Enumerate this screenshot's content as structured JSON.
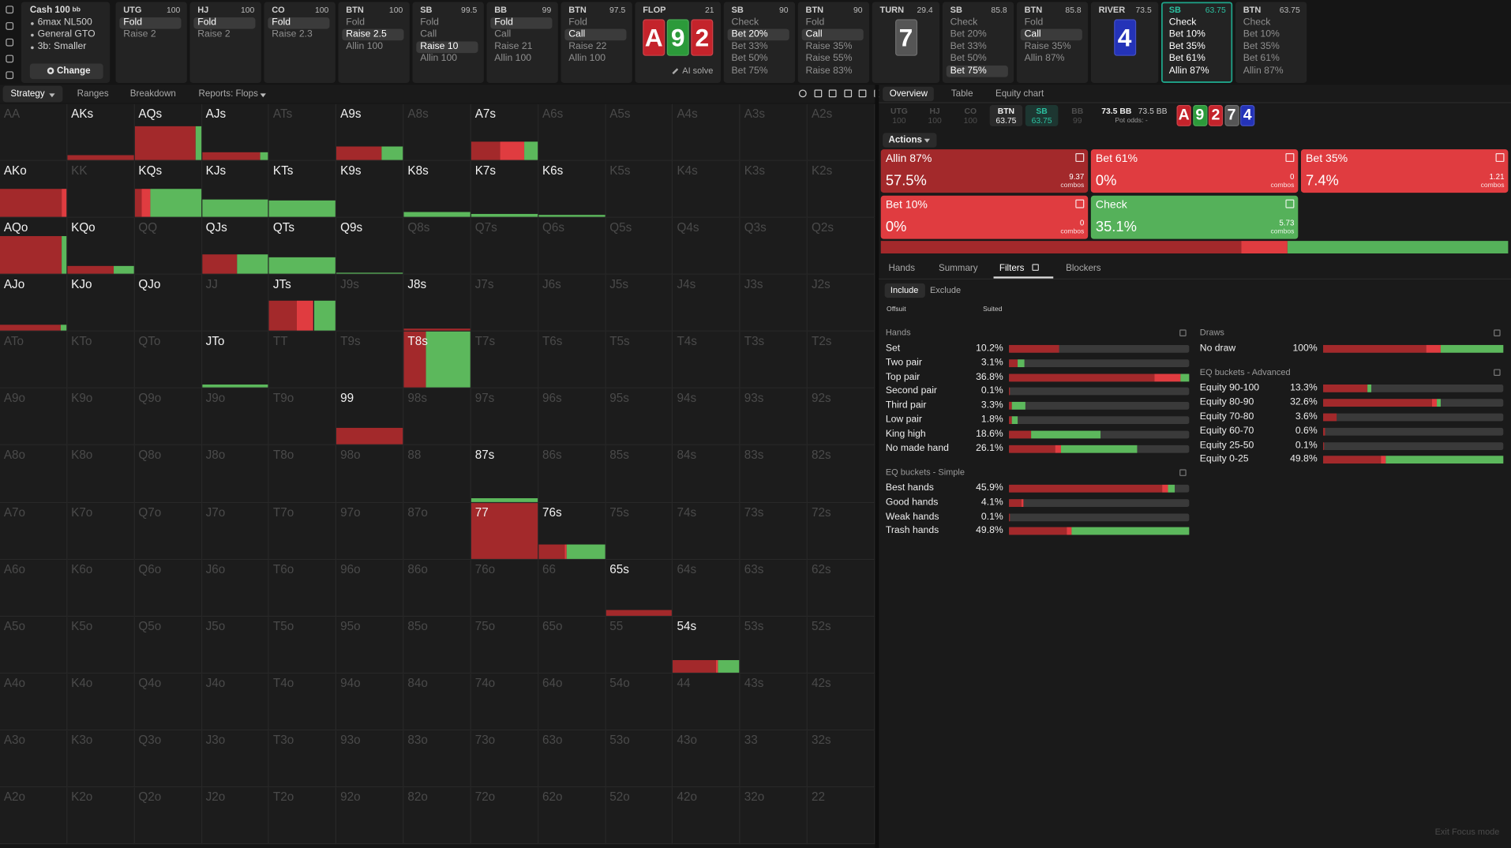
{
  "sidebar": {
    "title": "Cash 100",
    "title_unit": "bb",
    "items": [
      "6max NL500",
      "General GTO",
      "3b: Smaller"
    ],
    "button": "Change"
  },
  "action_strip": [
    {
      "position": "UTG",
      "stack": "100",
      "options": [
        "Fold",
        "Raise 2"
      ],
      "selected": 0
    },
    {
      "position": "HJ",
      "stack": "100",
      "options": [
        "Fold",
        "Raise 2"
      ],
      "selected": 0
    },
    {
      "position": "CO",
      "stack": "100",
      "options": [
        "Fold",
        "Raise 2.3"
      ],
      "selected": 0
    },
    {
      "position": "BTN",
      "stack": "100",
      "options": [
        "Fold",
        "Raise 2.5",
        "Allin 100"
      ],
      "selected": 1
    },
    {
      "position": "SB",
      "stack": "99.5",
      "options": [
        "Fold",
        "Call",
        "Raise 10",
        "Allin 100"
      ],
      "selected": 2
    },
    {
      "position": "BB",
      "stack": "99",
      "options": [
        "Fold",
        "Call",
        "Raise 21",
        "Allin 100"
      ],
      "selected": 0
    },
    {
      "position": "BTN",
      "stack": "97.5",
      "options": [
        "Fold",
        "Call",
        "Raise 22",
        "Allin 100"
      ],
      "selected": 1
    },
    {
      "street": "FLOP",
      "pot": "21",
      "cards": [
        {
          "rank": "A",
          "color": "#c4232b"
        },
        {
          "rank": "9",
          "color": "#2c9a3a"
        },
        {
          "rank": "2",
          "color": "#c4232b"
        }
      ],
      "action": "AI solve"
    },
    {
      "position": "SB",
      "stack": "90",
      "options": [
        "Check",
        "Bet 20%",
        "Bet 33%",
        "Bet 50%",
        "Bet 75%"
      ],
      "selected": 1
    },
    {
      "position": "BTN",
      "stack": "90",
      "options": [
        "Fold",
        "Call",
        "Raise 35%",
        "Raise 55%",
        "Raise 83%"
      ],
      "selected": 1
    },
    {
      "street": "TURN",
      "pot": "29.4",
      "cards": [
        {
          "rank": "7",
          "color": "#555555"
        }
      ]
    },
    {
      "position": "SB",
      "stack": "85.8",
      "options": [
        "Check",
        "Bet 20%",
        "Bet 33%",
        "Bet 50%",
        "Bet 75%"
      ],
      "selected": 4
    },
    {
      "position": "BTN",
      "stack": "85.8",
      "options": [
        "Fold",
        "Call",
        "Raise 35%",
        "Allin 87%"
      ],
      "selected": 1
    },
    {
      "street": "RIVER",
      "pot": "73.5",
      "cards": [
        {
          "rank": "4",
          "color": "#2433b8"
        }
      ]
    },
    {
      "position": "SB",
      "stack": "63.75",
      "options": [
        "Check",
        "Bet 10%",
        "Bet 35%",
        "Bet 61%",
        "Allin 87%"
      ],
      "active": true
    },
    {
      "position": "BTN",
      "stack": "63.75",
      "options": [
        "Check",
        "Bet 10%",
        "Bet 35%",
        "Bet 61%",
        "Allin 87%"
      ]
    }
  ],
  "toolbar": {
    "tabs": [
      "Strategy",
      "Ranges",
      "Breakdown",
      "Reports: Flops"
    ],
    "active": 0
  },
  "mix_colors": [
    "#a3292b",
    "#e03c40",
    "#5cb85c"
  ],
  "grid": {
    "rows": [
      [
        "AA",
        {
          "label": "AKs",
          "bright": true,
          "weight": 0.08,
          "mix": [
            1,
            0,
            0
          ]
        },
        {
          "label": "AQs",
          "bright": true,
          "weight": 0.6,
          "mix": [
            0.92,
            0,
            0.08
          ]
        },
        {
          "label": "AJs",
          "bright": true,
          "weight": 0.14,
          "mix": [
            0.88,
            0,
            0.12
          ]
        },
        "ATs",
        {
          "label": "A9s",
          "bright": true,
          "weight": 0.24,
          "mix": [
            0.68,
            0,
            0.32
          ]
        },
        "A8s",
        {
          "label": "A7s",
          "bright": true,
          "weight": 0.32,
          "mix": [
            0.43,
            0.37,
            0.2
          ]
        },
        "A6s",
        "A5s",
        "A4s",
        "A3s",
        "A2s"
      ],
      [
        {
          "label": "AKo",
          "bright": true,
          "weight": 0.5,
          "mix": [
            0.93,
            0.07,
            0
          ]
        },
        "KK",
        {
          "label": "KQs",
          "bright": true,
          "weight": 0.5,
          "mix": [
            0.1,
            0.13,
            0.77
          ]
        },
        {
          "label": "KJs",
          "bright": true,
          "weight": 0.32,
          "mix": [
            0,
            0,
            1
          ]
        },
        {
          "label": "KTs",
          "bright": true,
          "weight": 0.3,
          "mix": [
            0,
            0,
            1
          ]
        },
        {
          "label": "K9s",
          "bright": true
        },
        {
          "label": "K8s",
          "bright": true,
          "weight": 0.08,
          "mix": [
            0,
            0,
            1
          ]
        },
        {
          "label": "K7s",
          "bright": true,
          "weight": 0.05,
          "mix": [
            0,
            0,
            1
          ]
        },
        {
          "label": "K6s",
          "bright": true,
          "weight": 0.04,
          "mix": [
            0,
            0,
            1
          ]
        },
        "K5s",
        "K4s",
        "K3s",
        "K2s"
      ],
      [
        {
          "label": "AQo",
          "bright": true,
          "weight": 0.68,
          "mix": [
            0.93,
            0,
            0.07
          ]
        },
        {
          "label": "KQo",
          "bright": true,
          "weight": 0.14,
          "mix": [
            0.7,
            0,
            0.3
          ]
        },
        "QQ",
        {
          "label": "QJs",
          "bright": true,
          "weight": 0.34,
          "mix": [
            0.53,
            0,
            0.47
          ]
        },
        {
          "label": "QTs",
          "bright": true,
          "weight": 0.29,
          "mix": [
            0,
            0,
            1
          ]
        },
        {
          "label": "Q9s",
          "bright": true,
          "weight": 0.02,
          "mix": [
            0,
            0,
            1
          ]
        },
        "Q8s",
        "Q7s",
        "Q6s",
        "Q5s",
        "Q4s",
        "Q3s",
        "Q2s"
      ],
      [
        {
          "label": "AJo",
          "bright": true,
          "weight": 0.1,
          "mix": [
            0.92,
            0,
            0.08
          ]
        },
        {
          "label": "KJo",
          "bright": true
        },
        {
          "label": "QJo",
          "bright": true
        },
        "JJ",
        {
          "label": "JTs",
          "bright": true,
          "weight": 0.54,
          "mix": [
            0.42,
            0.25,
            0.33
          ]
        },
        "J9s",
        {
          "label": "J8s",
          "bright": true,
          "weight": 0.04,
          "mix": [
            1,
            0,
            0
          ]
        },
        "J7s",
        "J6s",
        "J5s",
        "J4s",
        "J3s",
        "J2s"
      ],
      [
        "ATo",
        "KTo",
        "QTo",
        {
          "label": "JTo",
          "bright": true,
          "weight": 0.05,
          "mix": [
            0,
            0,
            1
          ]
        },
        "TT",
        "T9s",
        {
          "label": "T8s",
          "bright": true,
          "weight": 1,
          "mix": [
            0.33,
            0,
            0.67
          ]
        },
        "T7s",
        "T6s",
        "T5s",
        "T4s",
        "T3s",
        "T2s"
      ],
      [
        "A9o",
        "K9o",
        "Q9o",
        "J9o",
        "T9o",
        {
          "label": "99",
          "bright": true,
          "weight": 0.3,
          "mix": [
            1,
            0,
            0
          ]
        },
        "98s",
        "97s",
        "96s",
        "95s",
        "94s",
        "93s",
        "92s"
      ],
      [
        "A8o",
        "K8o",
        "Q8o",
        "J8o",
        "T8o",
        "98o",
        "88",
        {
          "label": "87s",
          "bright": true,
          "weight": 0.06,
          "mix": [
            0,
            0,
            1
          ]
        },
        "86s",
        "85s",
        "84s",
        "83s",
        "82s"
      ],
      [
        "A7o",
        "K7o",
        "Q7o",
        "J7o",
        "T7o",
        "97o",
        "87o",
        {
          "label": "77",
          "bright": true,
          "weight": 1,
          "mix": [
            1,
            0,
            0
          ]
        },
        {
          "label": "76s",
          "bright": true,
          "weight": 0.26,
          "mix": [
            0.39,
            0.04,
            0.57
          ]
        },
        "75s",
        "74s",
        "73s",
        "72s"
      ],
      [
        "A6o",
        "K6o",
        "Q6o",
        "J6o",
        "T6o",
        "96o",
        "86o",
        "76o",
        "66",
        {
          "label": "65s",
          "bright": true,
          "weight": 0.1,
          "mix": [
            1,
            0,
            0
          ]
        },
        "64s",
        "63s",
        "62s"
      ],
      [
        "A5o",
        "K5o",
        "Q5o",
        "J5o",
        "T5o",
        "95o",
        "85o",
        "75o",
        "65o",
        "55",
        {
          "label": "54s",
          "bright": true,
          "weight": 0.22,
          "mix": [
            0.65,
            0.03,
            0.32
          ]
        },
        "53s",
        "52s"
      ],
      [
        "A4o",
        "K4o",
        "Q4o",
        "J4o",
        "T4o",
        "94o",
        "84o",
        "74o",
        "64o",
        "54o",
        "44",
        "43s",
        "42s"
      ],
      [
        "A3o",
        "K3o",
        "Q3o",
        "J3o",
        "T3o",
        "93o",
        "83o",
        "73o",
        "63o",
        "53o",
        "43o",
        "33",
        "32s"
      ],
      [
        "A2o",
        "K2o",
        "Q2o",
        "J2o",
        "T2o",
        "92o",
        "82o",
        "72o",
        "62o",
        "52o",
        "42o",
        "32o",
        "22"
      ]
    ]
  },
  "overview": {
    "tabs": [
      "Overview",
      "Table",
      "Equity chart"
    ],
    "active": 0,
    "seats": [
      {
        "position": "UTG",
        "stack": "100",
        "state": "dim"
      },
      {
        "position": "HJ",
        "stack": "100",
        "state": "dim"
      },
      {
        "position": "CO",
        "stack": "100",
        "state": "dim"
      },
      {
        "position": "BTN",
        "stack": "63.75",
        "state": "current"
      },
      {
        "position": "SB",
        "stack": "63.75",
        "state": "acting"
      },
      {
        "position": "BB",
        "stack": "99",
        "state": "dim"
      }
    ],
    "pot": "73.5 BB",
    "pot_total": "73.5 BB",
    "pot_odds": "Pot odds: -",
    "board": [
      {
        "rank": "A",
        "color": "#c4232b"
      },
      {
        "rank": "9",
        "color": "#2c9a3a"
      },
      {
        "rank": "2",
        "color": "#c4232b"
      },
      {
        "rank": "7",
        "color": "#555555"
      },
      {
        "rank": "4",
        "color": "#2433b8"
      }
    ]
  },
  "actions": {
    "label": "Actions",
    "combos_label": "combos",
    "items": [
      {
        "name": "Allin 87%",
        "freq": 57.5,
        "freq_label": "57.5%",
        "combos": "9.37",
        "color": "#a3292b"
      },
      {
        "name": "Bet 61%",
        "freq": 0,
        "freq_label": "0%",
        "combos": "0",
        "color": "#e03c40"
      },
      {
        "name": "Bet 35%",
        "freq": 7.4,
        "freq_label": "7.4%",
        "combos": "1.21",
        "color": "#e03c40"
      },
      {
        "name": "Bet 10%",
        "freq": 0,
        "freq_label": "0%",
        "combos": "0",
        "color": "#e03c40"
      },
      {
        "name": "Check",
        "freq": 35.1,
        "freq_label": "35.1%",
        "combos": "5.73",
        "color": "#55b15a"
      }
    ]
  },
  "filters": {
    "tabs": [
      "Hands",
      "Summary",
      "Filters",
      "Blockers"
    ],
    "active": 2,
    "include": "Include",
    "exclude": "Exclude",
    "offsuit": "Offsuit",
    "suited": "Suited"
  },
  "stats": {
    "left": [
      {
        "title": "Hands",
        "rows": [
          {
            "name": "Set",
            "pct": 10.2,
            "pct_label": "10.2%",
            "mix": [
              1,
              0,
              0
            ]
          },
          {
            "name": "Two pair",
            "pct": 3.1,
            "pct_label": "3.1%",
            "mix": [
              0.6,
              0,
              0.4
            ]
          },
          {
            "name": "Top pair",
            "pct": 36.8,
            "pct_label": "36.8%",
            "mix": [
              0.81,
              0.14,
              0.05
            ]
          },
          {
            "name": "Second pair",
            "pct": 0.1,
            "pct_label": "0.1%",
            "mix": [
              1,
              0,
              0
            ]
          },
          {
            "name": "Third pair",
            "pct": 3.3,
            "pct_label": "3.3%",
            "mix": [
              0.2,
              0,
              0.8
            ]
          },
          {
            "name": "Low pair",
            "pct": 1.8,
            "pct_label": "1.8%",
            "mix": [
              0.3,
              0,
              0.7
            ]
          },
          {
            "name": "King high",
            "pct": 18.6,
            "pct_label": "18.6%",
            "mix": [
              0.24,
              0,
              0.76
            ]
          },
          {
            "name": "No made hand",
            "pct": 26.1,
            "pct_label": "26.1%",
            "mix": [
              0.36,
              0.05,
              0.59
            ]
          }
        ]
      },
      {
        "title": "EQ buckets - Simple",
        "rows": [
          {
            "name": "Best hands",
            "pct": 45.9,
            "pct_label": "45.9%",
            "mix": [
              0.92,
              0.04,
              0.04
            ]
          },
          {
            "name": "Good hands",
            "pct": 4.1,
            "pct_label": "4.1%",
            "mix": [
              0.85,
              0.15,
              0
            ]
          },
          {
            "name": "Weak hands",
            "pct": 0.1,
            "pct_label": "0.1%",
            "mix": [
              1,
              0,
              0
            ]
          },
          {
            "name": "Trash hands",
            "pct": 49.8,
            "pct_label": "49.8%",
            "mix": [
              0.32,
              0.03,
              0.65
            ]
          }
        ]
      }
    ],
    "right": [
      {
        "title": "Draws",
        "rows": [
          {
            "name": "No draw",
            "pct": 100,
            "pct_label": "100%",
            "mix": [
              0.57,
              0.08,
              0.35
            ]
          }
        ]
      },
      {
        "title": "EQ buckets - Advanced",
        "rows": [
          {
            "name": "Equity 90-100",
            "pct": 13.3,
            "pct_label": "13.3%",
            "mix": [
              0.92,
              0,
              0.08
            ]
          },
          {
            "name": "Equity 80-90",
            "pct": 32.6,
            "pct_label": "32.6%",
            "mix": [
              0.92,
              0.04,
              0.04
            ]
          },
          {
            "name": "Equity 70-80",
            "pct": 3.6,
            "pct_label": "3.6%",
            "mix": [
              1,
              0,
              0
            ]
          },
          {
            "name": "Equity 60-70",
            "pct": 0.6,
            "pct_label": "0.6%",
            "mix": [
              1,
              0,
              0
            ]
          },
          {
            "name": "Equity 25-50",
            "pct": 0.1,
            "pct_label": "0.1%",
            "mix": [
              1,
              0,
              0
            ]
          },
          {
            "name": "Equity 0-25",
            "pct": 49.8,
            "pct_label": "49.8%",
            "mix": [
              0.32,
              0.03,
              0.65
            ]
          }
        ]
      }
    ]
  },
  "footer": "Exit Focus mode"
}
